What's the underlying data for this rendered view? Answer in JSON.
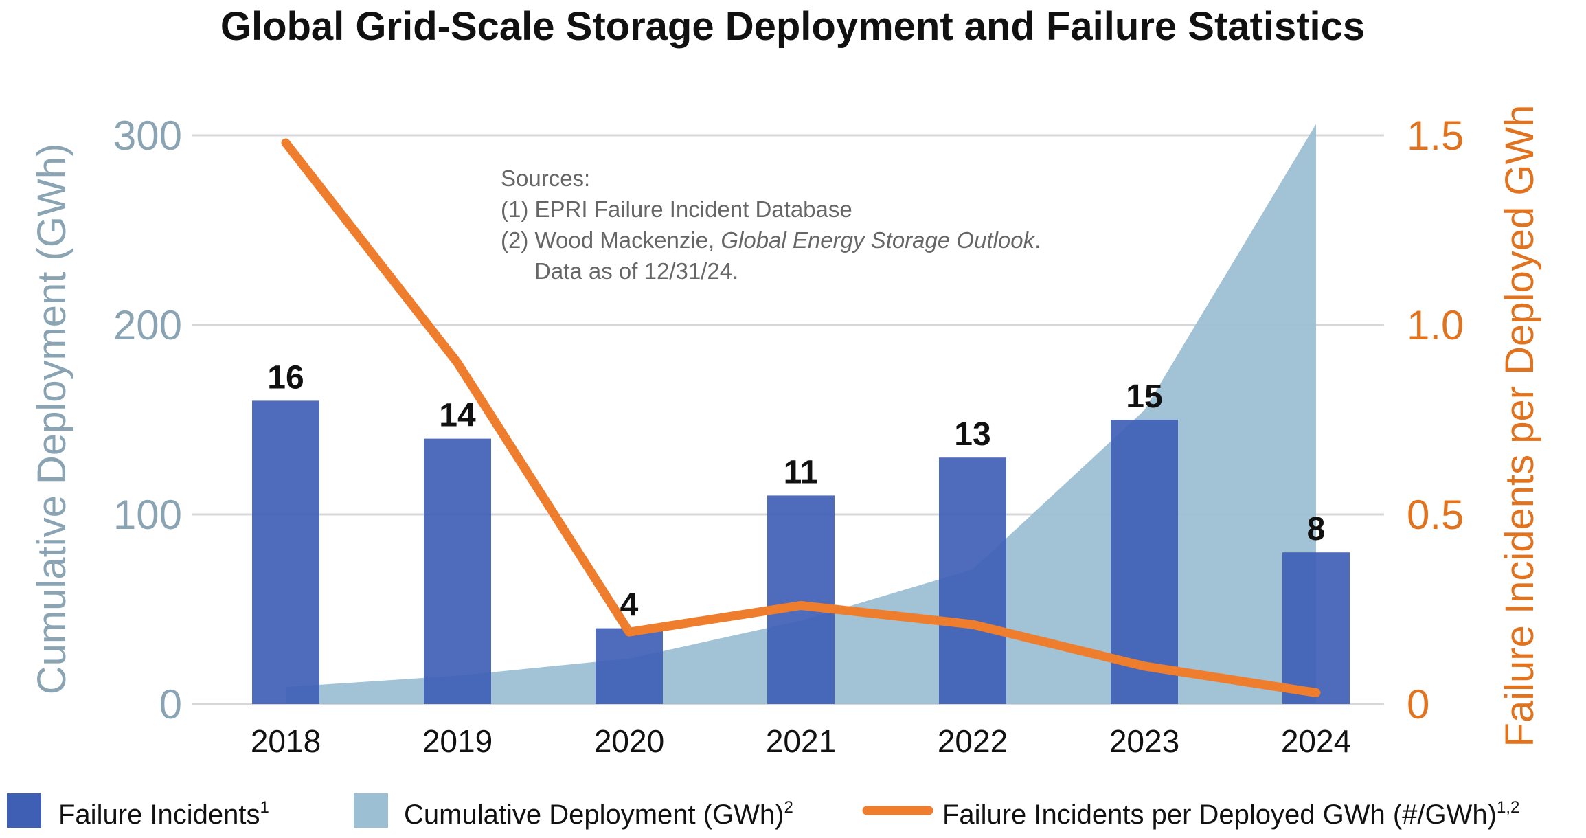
{
  "chart_data": {
    "type": "bar",
    "title": "Global Grid-Scale Storage Deployment and Failure Statistics",
    "categories": [
      "2018",
      "2019",
      "2020",
      "2021",
      "2022",
      "2023",
      "2024"
    ],
    "series": [
      {
        "name": "Failure Incidents",
        "name_sup": "1",
        "type": "bar",
        "axis": "left",
        "color": "#3f5fb5",
        "values": [
          16,
          14,
          4,
          11,
          13,
          15,
          8
        ],
        "data_labels": [
          "16",
          "14",
          "4",
          "11",
          "13",
          "15",
          "8"
        ]
      },
      {
        "name": "Cumulative Deployment (GWh)",
        "name_sup": "2",
        "type": "area",
        "axis": "left",
        "color": "#9dbfd3",
        "values": [
          9,
          15,
          24,
          44,
          71,
          155,
          306
        ]
      },
      {
        "name": "Failure Incidents per Deployed GWh (#/GWh)",
        "name_sup": "1,2",
        "type": "line",
        "axis": "right",
        "color": "#ef7d2e",
        "values": [
          1.48,
          0.9,
          0.19,
          0.26,
          0.21,
          0.1,
          0.03
        ]
      }
    ],
    "y_left": {
      "label": "Cumulative Deployment (GWh)",
      "ticks": [
        "0",
        "100",
        "200",
        "300"
      ],
      "ylim": [
        0,
        300
      ]
    },
    "y_right": {
      "label": "Failure Incidents per Deployed GWh",
      "ticks": [
        "0",
        "0.5",
        "1.0",
        "1.5"
      ],
      "ylim": [
        0,
        1.5
      ]
    },
    "grid": true,
    "legend": "bottom",
    "annotation": {
      "lines": [
        "Sources:",
        "(1) EPRI Failure Incident Database",
        "(2) Wood Mackenzie, ",
        "Global Energy Storage Outlook",
        ".",
        "Data as of 12/31/24."
      ]
    }
  }
}
